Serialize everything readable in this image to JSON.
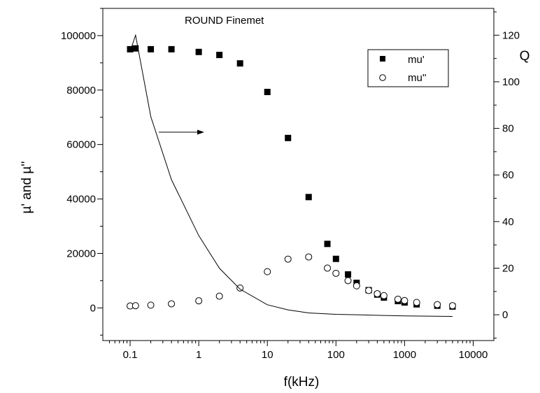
{
  "chart_data": {
    "type": "scatter",
    "title": "ROUND Finemet",
    "xlabel": "f(kHz)",
    "ylabel": "µ' and µ''",
    "y2label": "Q",
    "x_scale": "log",
    "xlim": [
      0.04,
      20000
    ],
    "ylim": [
      -12000,
      110000
    ],
    "y2lim": [
      -11.07,
      131.5
    ],
    "x_ticks": [
      0.1,
      1,
      10,
      100,
      1000,
      10000
    ],
    "x_tick_labels": [
      "0.1",
      "1",
      "10",
      "100",
      "1000",
      "10000"
    ],
    "y_ticks": [
      0,
      20000,
      40000,
      60000,
      80000,
      100000
    ],
    "y_tick_labels": [
      "0",
      "20000",
      "40000",
      "60000",
      "80000",
      "100000"
    ],
    "y2_ticks": [
      0,
      20,
      40,
      60,
      80,
      100,
      120
    ],
    "y2_tick_labels": [
      "0",
      "20",
      "40",
      "60",
      "80",
      "100",
      "120"
    ],
    "grid": false,
    "legend_position": "top-right",
    "annotation": "arrow pointing right, indicating the solid line uses the right axis (Q)",
    "series": [
      {
        "name": "mu'",
        "marker": "filled-square",
        "axis": "left",
        "x": [
          0.1,
          0.12,
          0.2,
          0.4,
          1,
          2,
          4,
          10,
          20,
          40,
          75,
          100,
          150,
          200,
          300,
          400,
          500,
          800,
          1000,
          1500,
          3000,
          5000
        ],
        "y": [
          95000,
          95300,
          95000,
          95000,
          94000,
          92900,
          89800,
          79300,
          62400,
          40700,
          23500,
          18000,
          12300,
          9200,
          6500,
          4900,
          3800,
          2500,
          2000,
          1300,
          800,
          500
        ]
      },
      {
        "name": "mu''",
        "marker": "open-circle",
        "axis": "left",
        "x": [
          0.1,
          0.12,
          0.2,
          0.4,
          1,
          2,
          4,
          10,
          20,
          40,
          75,
          100,
          150,
          200,
          300,
          400,
          500,
          800,
          1000,
          1500,
          3000,
          5000
        ],
        "y": [
          700,
          800,
          1000,
          1500,
          2600,
          4300,
          7300,
          13300,
          17900,
          18700,
          14600,
          12700,
          10000,
          8100,
          6400,
          5200,
          4500,
          3200,
          2700,
          2000,
          1200,
          800
        ]
      },
      {
        "name": "",
        "line": "solid",
        "axis": "right",
        "x": [
          0.1,
          0.12,
          0.2,
          0.4,
          1,
          2,
          4,
          10,
          20,
          40,
          100,
          200,
          500,
          1000,
          5000
        ],
        "y": [
          113,
          120,
          85,
          58,
          34,
          20,
          11,
          4.3,
          2.1,
          0.8,
          0.2,
          0,
          -0.3,
          -0.5,
          -0.7
        ]
      }
    ]
  }
}
